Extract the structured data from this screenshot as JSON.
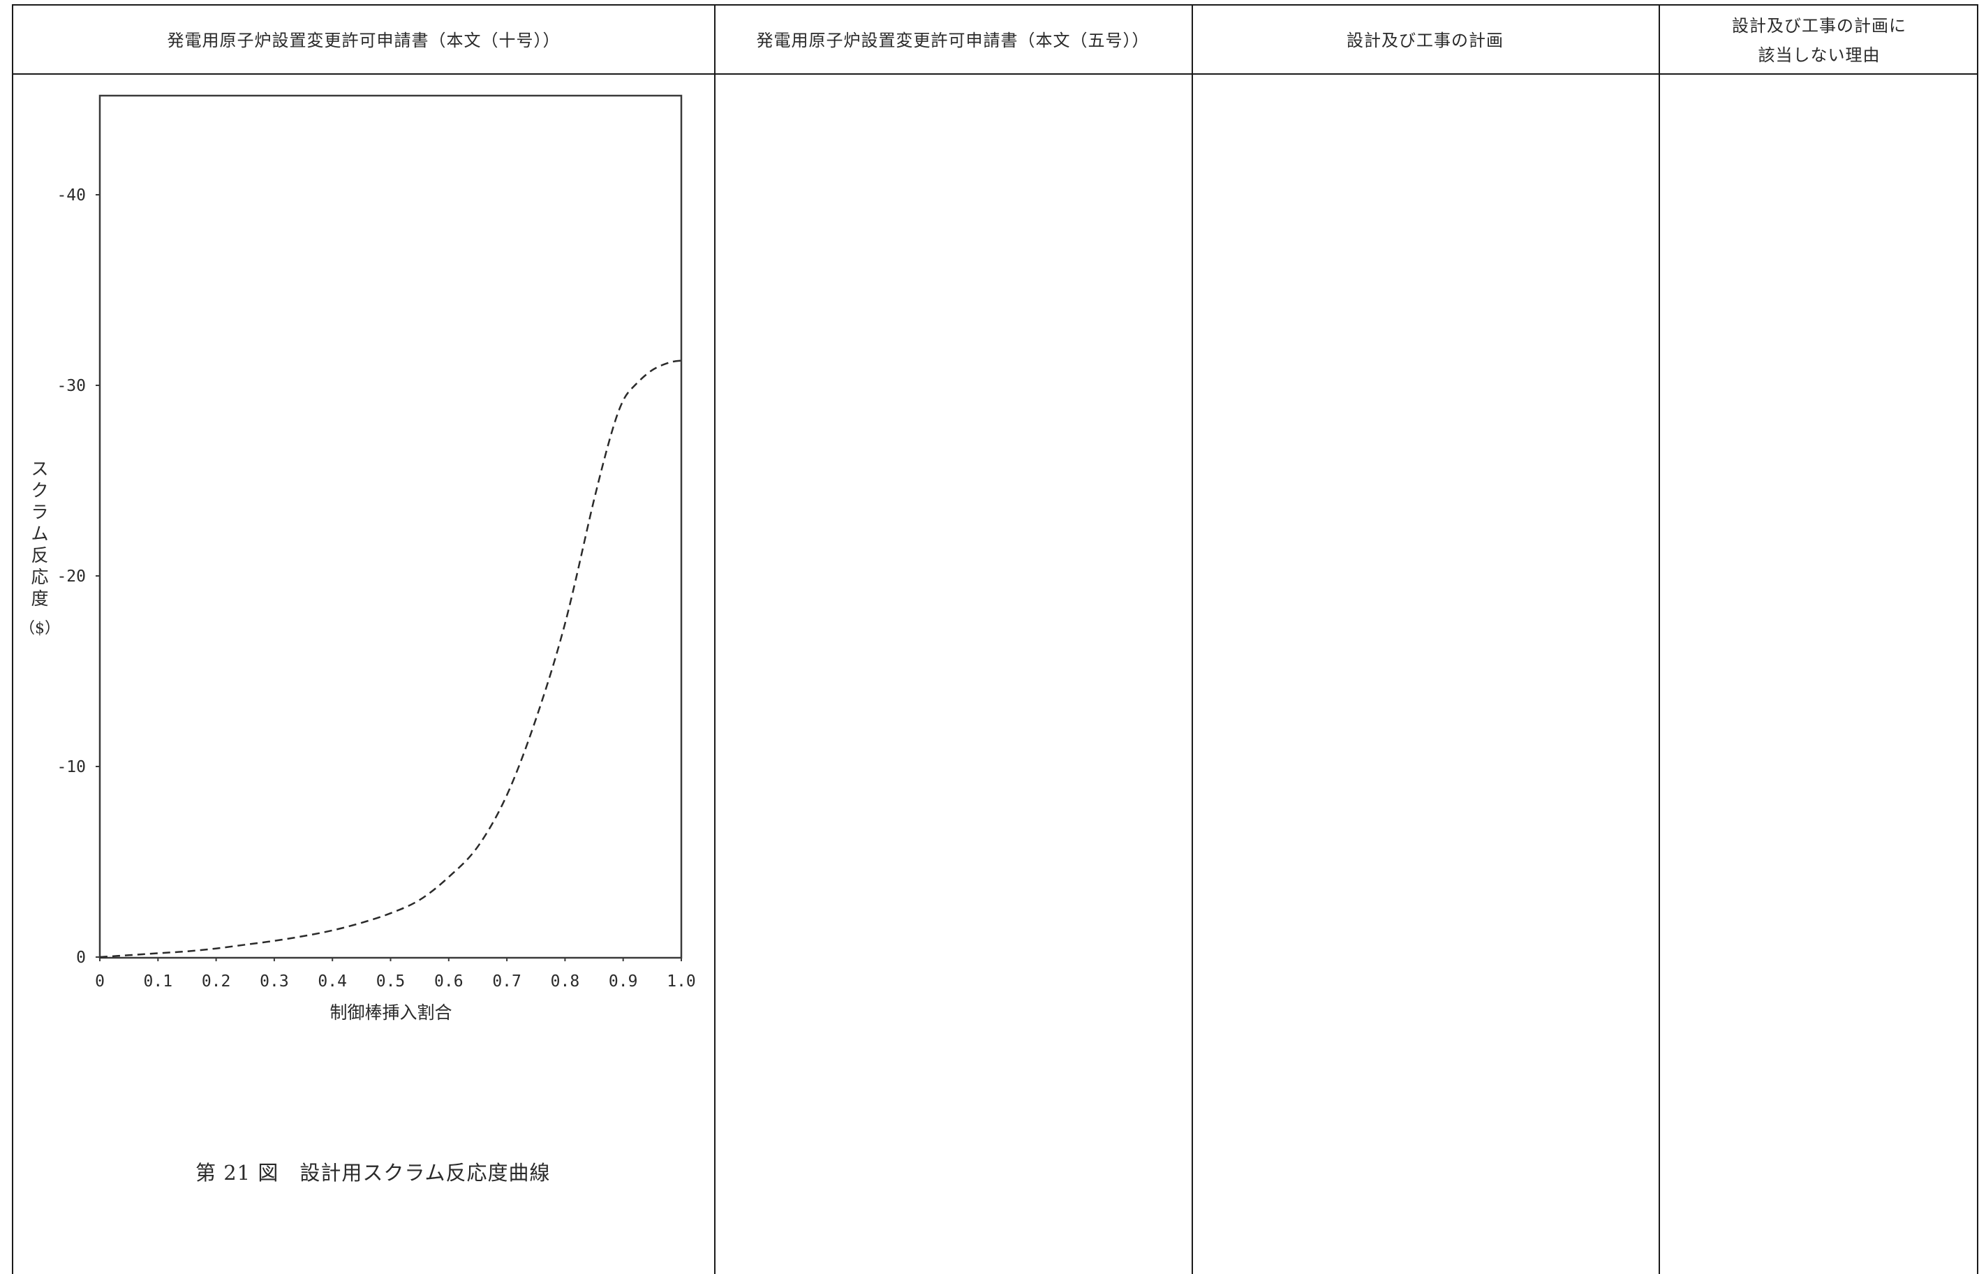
{
  "table": {
    "headers": [
      "発電用原子炉設置変更許可申請書（本文（十号））",
      "発電用原子炉設置変更許可申請書（本文（五号））",
      "設計及び工事の計画",
      [
        "設計及び工事の計画に",
        "該当しない理由"
      ]
    ]
  },
  "figure": {
    "caption": "第 21 図　設計用スクラム反応度曲線"
  },
  "chart_data": {
    "type": "line",
    "xlabel": "制御棒挿入割合",
    "ylabel_lines": [
      "ス",
      "ク",
      "ラ",
      "ム",
      "反",
      "応",
      "度",
      "（$）"
    ],
    "x_ticks": [
      "0",
      "0.1",
      "0.2",
      "0.3",
      "0.4",
      "0.5",
      "0.6",
      "0.7",
      "0.8",
      "0.9",
      "1.0"
    ],
    "y_ticks": [
      "0",
      "-10",
      "-20",
      "-30",
      "-40"
    ],
    "xlim": [
      0,
      1.0
    ],
    "ylim": [
      0,
      -45
    ],
    "line_style": "dashed",
    "series": [
      {
        "x": [
          0,
          0.05,
          0.1,
          0.15,
          0.2,
          0.25,
          0.3,
          0.35,
          0.4,
          0.45,
          0.5,
          0.55,
          0.6,
          0.65,
          0.7,
          0.75,
          0.8,
          0.85,
          0.88,
          0.9,
          0.92,
          0.95,
          0.98,
          1.0
        ],
        "y": [
          0,
          -0.1,
          -0.2,
          -0.3,
          -0.45,
          -0.65,
          -0.85,
          -1.1,
          -1.4,
          -1.8,
          -2.3,
          -3.0,
          -4.2,
          -5.8,
          -8.5,
          -12.5,
          -17.5,
          -24.0,
          -27.5,
          -29.2,
          -30.0,
          -30.8,
          -31.2,
          -31.3
        ]
      }
    ],
    "grid": false
  }
}
